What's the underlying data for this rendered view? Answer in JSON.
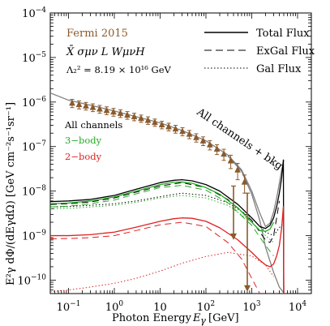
{
  "chart_data": {
    "type": "line",
    "x_scale": "log",
    "y_scale": "log",
    "xlim": [
      0.04,
      20000
    ],
    "ylim": [
      5e-11,
      0.0001
    ],
    "xlabel": "Photon Energy",
    "xlabel_symbol": "E",
    "xlabel_sub": "γ",
    "xlabel_unit": "[GeV]",
    "ylabel": "E²γ dΦ/(dEγdΩ) [GeV cm⁻²s⁻¹sr⁻¹]",
    "x_ticks": [
      {
        "value": 0.1,
        "label": "10",
        "exp": "−1"
      },
      {
        "value": 1,
        "label": "10",
        "exp": "0"
      },
      {
        "value": 10,
        "label": "10",
        "exp": ""
      },
      {
        "value": 100,
        "label": "10",
        "exp": "2"
      },
      {
        "value": 1000,
        "label": "10",
        "exp": "3"
      },
      {
        "value": 10000,
        "label": "10",
        "exp": "4"
      }
    ],
    "y_ticks": [
      {
        "value": 1e-10,
        "label": "10",
        "exp": "−10"
      },
      {
        "value": 1e-09,
        "label": "10",
        "exp": "−9"
      },
      {
        "value": 1e-08,
        "label": "10",
        "exp": "−8"
      },
      {
        "value": 1e-07,
        "label": "10",
        "exp": "−7"
      },
      {
        "value": 1e-06,
        "label": "10",
        "exp": "−6"
      },
      {
        "value": 1e-05,
        "label": "10",
        "exp": "−5"
      },
      {
        "value": 0.0001,
        "label": "10",
        "exp": "−4"
      }
    ],
    "annotations": {
      "fermi": "Fermi 2015",
      "operator": "X̄ σμν L WμνH",
      "lambda": "Λ₂² = 8.19 × 10¹⁶ GeV",
      "all_channels_bkg": "All channels + bkg",
      "all_channels": "All channels",
      "three_body": "3−body",
      "two_body": "2−body"
    },
    "legend": {
      "position": "top-right",
      "entries": [
        {
          "name": "Total Flux",
          "style": "solid"
        },
        {
          "name": "ExGal Flux",
          "style": "dashed"
        },
        {
          "name": "Gal Flux",
          "style": "dotted"
        }
      ]
    },
    "colors": {
      "fermi": "#8b5a2b",
      "all": "#000000",
      "three_body": "#22aa22",
      "two_body": "#e02020",
      "bkg": "#808080"
    },
    "fermi_data": {
      "x": [
        0.12,
        0.17,
        0.24,
        0.34,
        0.48,
        0.68,
        0.96,
        1.36,
        1.92,
        2.72,
        3.84,
        5.43,
        7.68,
        10.9,
        15.4,
        21.7,
        30.7,
        43.5,
        61.4,
        86.9,
        122,
        174,
        246,
        348,
        492,
        696
      ],
      "y": [
        9.5e-07,
        8.8e-07,
        8.2e-07,
        7.6e-07,
        7e-07,
        6.5e-07,
        6e-07,
        5.6e-07,
        5.1e-07,
        4.7e-07,
        4.3e-07,
        3.9e-07,
        3.5e-07,
        3.1e-07,
        2.8e-07,
        2.5e-07,
        2.2e-07,
        1.9e-07,
        1.6e-07,
        1.35e-07,
        1.1e-07,
        8.8e-08,
        6.8e-08,
        4.8e-08,
        3e-08,
        1.6e-08
      ],
      "err_lo": [
        2e-07,
        1.8e-07,
        1.6e-07,
        1.5e-07,
        1.4e-07,
        1.3e-07,
        1.2e-07,
        1.1e-07,
        1e-07,
        9e-08,
        8e-08,
        7.5e-08,
        6.5e-08,
        6e-08,
        5.5e-08,
        5e-08,
        4.5e-08,
        4e-08,
        3.4e-08,
        3e-08,
        2.6e-08,
        2.2e-08,
        1.9e-08,
        1.6e-08,
        1.2e-08,
        7e-09
      ],
      "err_hi": [
        2e-07,
        1.8e-07,
        1.6e-07,
        1.5e-07,
        1.4e-07,
        1.3e-07,
        1.2e-07,
        1.1e-07,
        1e-07,
        9e-08,
        8e-08,
        7.5e-08,
        6.5e-08,
        6e-08,
        5.5e-08,
        5e-08,
        4.5e-08,
        4e-08,
        3.4e-08,
        3e-08,
        2.6e-08,
        2.2e-08,
        1.9e-08,
        1.6e-08,
        1.2e-08,
        7e-09
      ],
      "upper_limits": [
        {
          "x": 400,
          "y": 1.3e-08,
          "to": 8e-10
        },
        {
          "x": 800,
          "y": 9e-09,
          "to": 5.5e-11
        }
      ]
    },
    "series": [
      {
        "name": "All channels + bkg",
        "group": "bkg",
        "style": "solid",
        "x": [
          0.04,
          0.1,
          0.3,
          1,
          3,
          10,
          30,
          100,
          300,
          600,
          1000,
          1500,
          2000,
          2500,
          3000,
          3500,
          4000,
          4500,
          5000
        ],
        "y": [
          1.6e-06,
          1.1e-06,
          8.5e-07,
          6.3e-07,
          4.7e-07,
          3.4e-07,
          2.3e-07,
          1.35e-07,
          6.5e-08,
          3e-08,
          1e-08,
          3.2e-09,
          1.6e-09,
          1.9e-09,
          3.4e-09,
          7e-09,
          1.5e-08,
          3e-08,
          5e-08
        ]
      },
      {
        "name": "Background only",
        "group": "bkg",
        "style": "solid",
        "color": "#808080",
        "x": [
          300,
          600,
          1000,
          1500,
          2000,
          3000,
          4000,
          5000
        ],
        "y": [
          6.2e-08,
          2.8e-08,
          8.5e-09,
          2.2e-09,
          5.5e-10,
          1.5e-10,
          7e-11,
          5.2e-11
        ]
      },
      {
        "name": "All channels",
        "group": "all",
        "style": "solid",
        "x": [
          0.04,
          0.1,
          0.3,
          1,
          3,
          10,
          20,
          30,
          50,
          100,
          200,
          500,
          1000,
          1500,
          2000,
          2500,
          3000,
          3500,
          4000,
          4500,
          4900,
          5000
        ],
        "y": [
          5.8e-09,
          6e-09,
          6.5e-09,
          8e-09,
          1.1e-08,
          1.55e-08,
          1.75e-08,
          1.8e-08,
          1.7e-08,
          1.4e-08,
          1e-08,
          5e-09,
          2.5e-09,
          1.6e-09,
          1.45e-09,
          1.7e-09,
          2.5e-09,
          4.5e-09,
          9e-09,
          2e-08,
          5e-08,
          5e-11
        ]
      },
      {
        "name": "All channels ExGal",
        "group": "all",
        "style": "dashed",
        "x": [
          0.04,
          0.1,
          0.3,
          1,
          3,
          10,
          30,
          100,
          300,
          1000,
          1500,
          2000,
          2500,
          3000,
          3500,
          4000
        ],
        "y": [
          5e-09,
          5.2e-09,
          5.7e-09,
          7e-09,
          9.5e-09,
          1.3e-08,
          1.55e-08,
          1.2e-08,
          6.5e-09,
          2.2e-09,
          1.2e-09,
          8e-10,
          7e-10,
          1e-09,
          2.5e-09,
          6e-09
        ]
      },
      {
        "name": "All channels Gal",
        "group": "all",
        "style": "dotted",
        "x": [
          0.04,
          0.1,
          0.3,
          1,
          3,
          10,
          30,
          100,
          300,
          1000,
          2000,
          3000,
          4000,
          5000
        ],
        "y": [
          4.4e-09,
          4.5e-09,
          4.8e-09,
          5.2e-09,
          6e-09,
          7.5e-09,
          9e-09,
          8e-09,
          5.5e-09,
          2.5e-09,
          1.2e-09,
          1e-09,
          1.5e-09,
          2e-09
        ]
      },
      {
        "name": "3-body total",
        "group": "three_body",
        "style": "solid",
        "x": [
          0.04,
          0.1,
          0.3,
          1,
          3,
          10,
          20,
          30,
          50,
          100,
          200,
          500,
          1000,
          1500,
          2000,
          2500,
          3000
        ],
        "y": [
          5.2e-09,
          5.4e-09,
          6e-09,
          7.4e-09,
          1e-08,
          1.4e-08,
          1.58e-08,
          1.6e-08,
          1.5e-08,
          1.2e-08,
          8.5e-09,
          4.2e-09,
          2e-09,
          1.3e-09,
          1.25e-09,
          1.4e-09,
          2e-09
        ]
      },
      {
        "name": "3-body ExGal",
        "group": "three_body",
        "style": "dashed",
        "x": [
          0.04,
          0.1,
          0.3,
          1,
          3,
          10,
          30,
          100,
          300,
          1000,
          2000,
          3000
        ],
        "y": [
          4.4e-09,
          4.6e-09,
          5.2e-09,
          6.3e-09,
          8.7e-09,
          1.2e-08,
          1.35e-08,
          1.05e-08,
          5.5e-09,
          1.7e-09,
          6e-10,
          3.5e-10
        ]
      },
      {
        "name": "3-body Gal",
        "group": "three_body",
        "style": "dotted",
        "x": [
          0.04,
          0.1,
          0.3,
          1,
          3,
          10,
          30,
          100,
          300,
          1000,
          2000,
          3000
        ],
        "y": [
          4e-09,
          4.1e-09,
          4.4e-09,
          4.8e-09,
          5.6e-09,
          7e-09,
          8e-09,
          7e-09,
          4.8e-09,
          2e-09,
          1e-09,
          7e-10
        ]
      },
      {
        "name": "2-body total",
        "group": "two_body",
        "style": "solid",
        "x": [
          0.04,
          0.1,
          0.3,
          1,
          3,
          10,
          20,
          30,
          50,
          100,
          200,
          500,
          1000,
          1500,
          2000,
          2500,
          3000,
          3500,
          4000,
          4500,
          4900,
          5000
        ],
        "y": [
          1e-09,
          1e-09,
          1.05e-09,
          1.2e-09,
          1.55e-09,
          2.1e-09,
          2.4e-09,
          2.5e-09,
          2.45e-09,
          2.1e-09,
          1.5e-09,
          8e-10,
          4.2e-10,
          2.8e-10,
          2.2e-10,
          2e-10,
          2.3e-10,
          3.5e-10,
          6e-10,
          1.5e-09,
          4.5e-09,
          5e-11
        ]
      },
      {
        "name": "2-body ExGal",
        "group": "two_body",
        "style": "dashed",
        "x": [
          0.04,
          0.1,
          0.3,
          1,
          3,
          10,
          30,
          100,
          300,
          600,
          1000,
          1500
        ],
        "y": [
          8.5e-10,
          8.6e-10,
          9e-10,
          1e-09,
          1.3e-09,
          1.75e-09,
          2e-09,
          1.6e-09,
          7e-10,
          3e-10,
          1.1e-10,
          5e-11
        ]
      },
      {
        "name": "2-body Gal",
        "group": "two_body",
        "style": "dotted",
        "x": [
          0.04,
          0.1,
          0.3,
          1,
          3,
          10,
          30,
          100,
          300,
          1000,
          2000,
          3000
        ],
        "y": [
          5.5e-11,
          6e-11,
          7e-11,
          8.5e-11,
          1.1e-10,
          1.6e-10,
          2.4e-10,
          3.4e-10,
          4.2e-10,
          3.5e-10,
          2.2e-10,
          1.2e-10
        ]
      }
    ]
  }
}
